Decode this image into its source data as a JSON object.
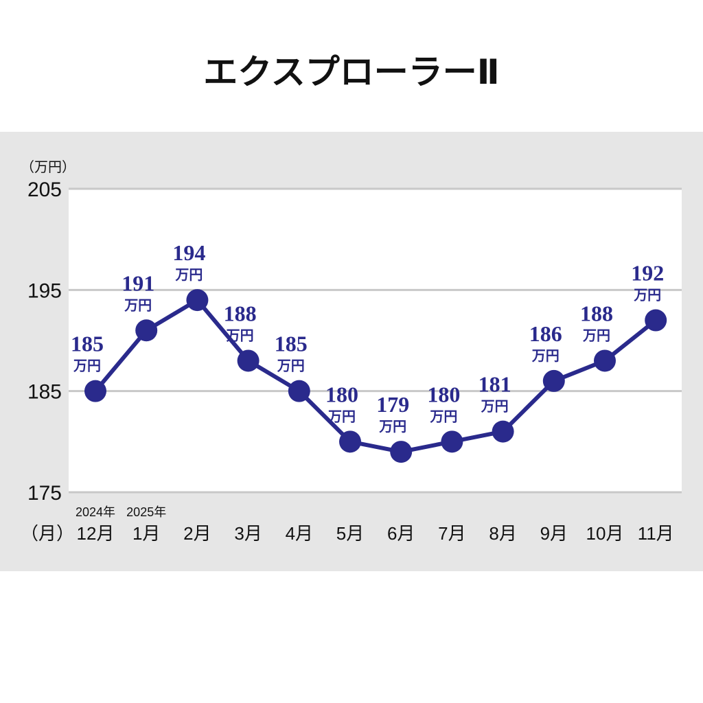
{
  "chart_data": {
    "type": "line",
    "title": "エクスプローラーⅡ",
    "y_unit_label": "（万円）",
    "x_unit_label": "（月）",
    "ylim": [
      175,
      205
    ],
    "yticks": [
      "205",
      "195",
      "185",
      "175"
    ],
    "grid": true,
    "categories": [
      "12月",
      "1月",
      "2月",
      "3月",
      "4月",
      "5月",
      "6月",
      "7月",
      "8月",
      "9月",
      "10月",
      "11月"
    ],
    "year_labels": [
      {
        "index": 0,
        "label": "2024年"
      },
      {
        "index": 1,
        "label": "2025年"
      }
    ],
    "value_unit": "万円",
    "series": [
      {
        "values": [
          185,
          191,
          194,
          188,
          185,
          180,
          179,
          180,
          181,
          186,
          188,
          192
        ],
        "color": "#2a2a8c"
      }
    ]
  },
  "colors": {
    "panel_bg": "#e6e6e6",
    "plot_bg": "#ffffff",
    "grid": "#c8c8c8",
    "series": "#2a2a8c"
  }
}
